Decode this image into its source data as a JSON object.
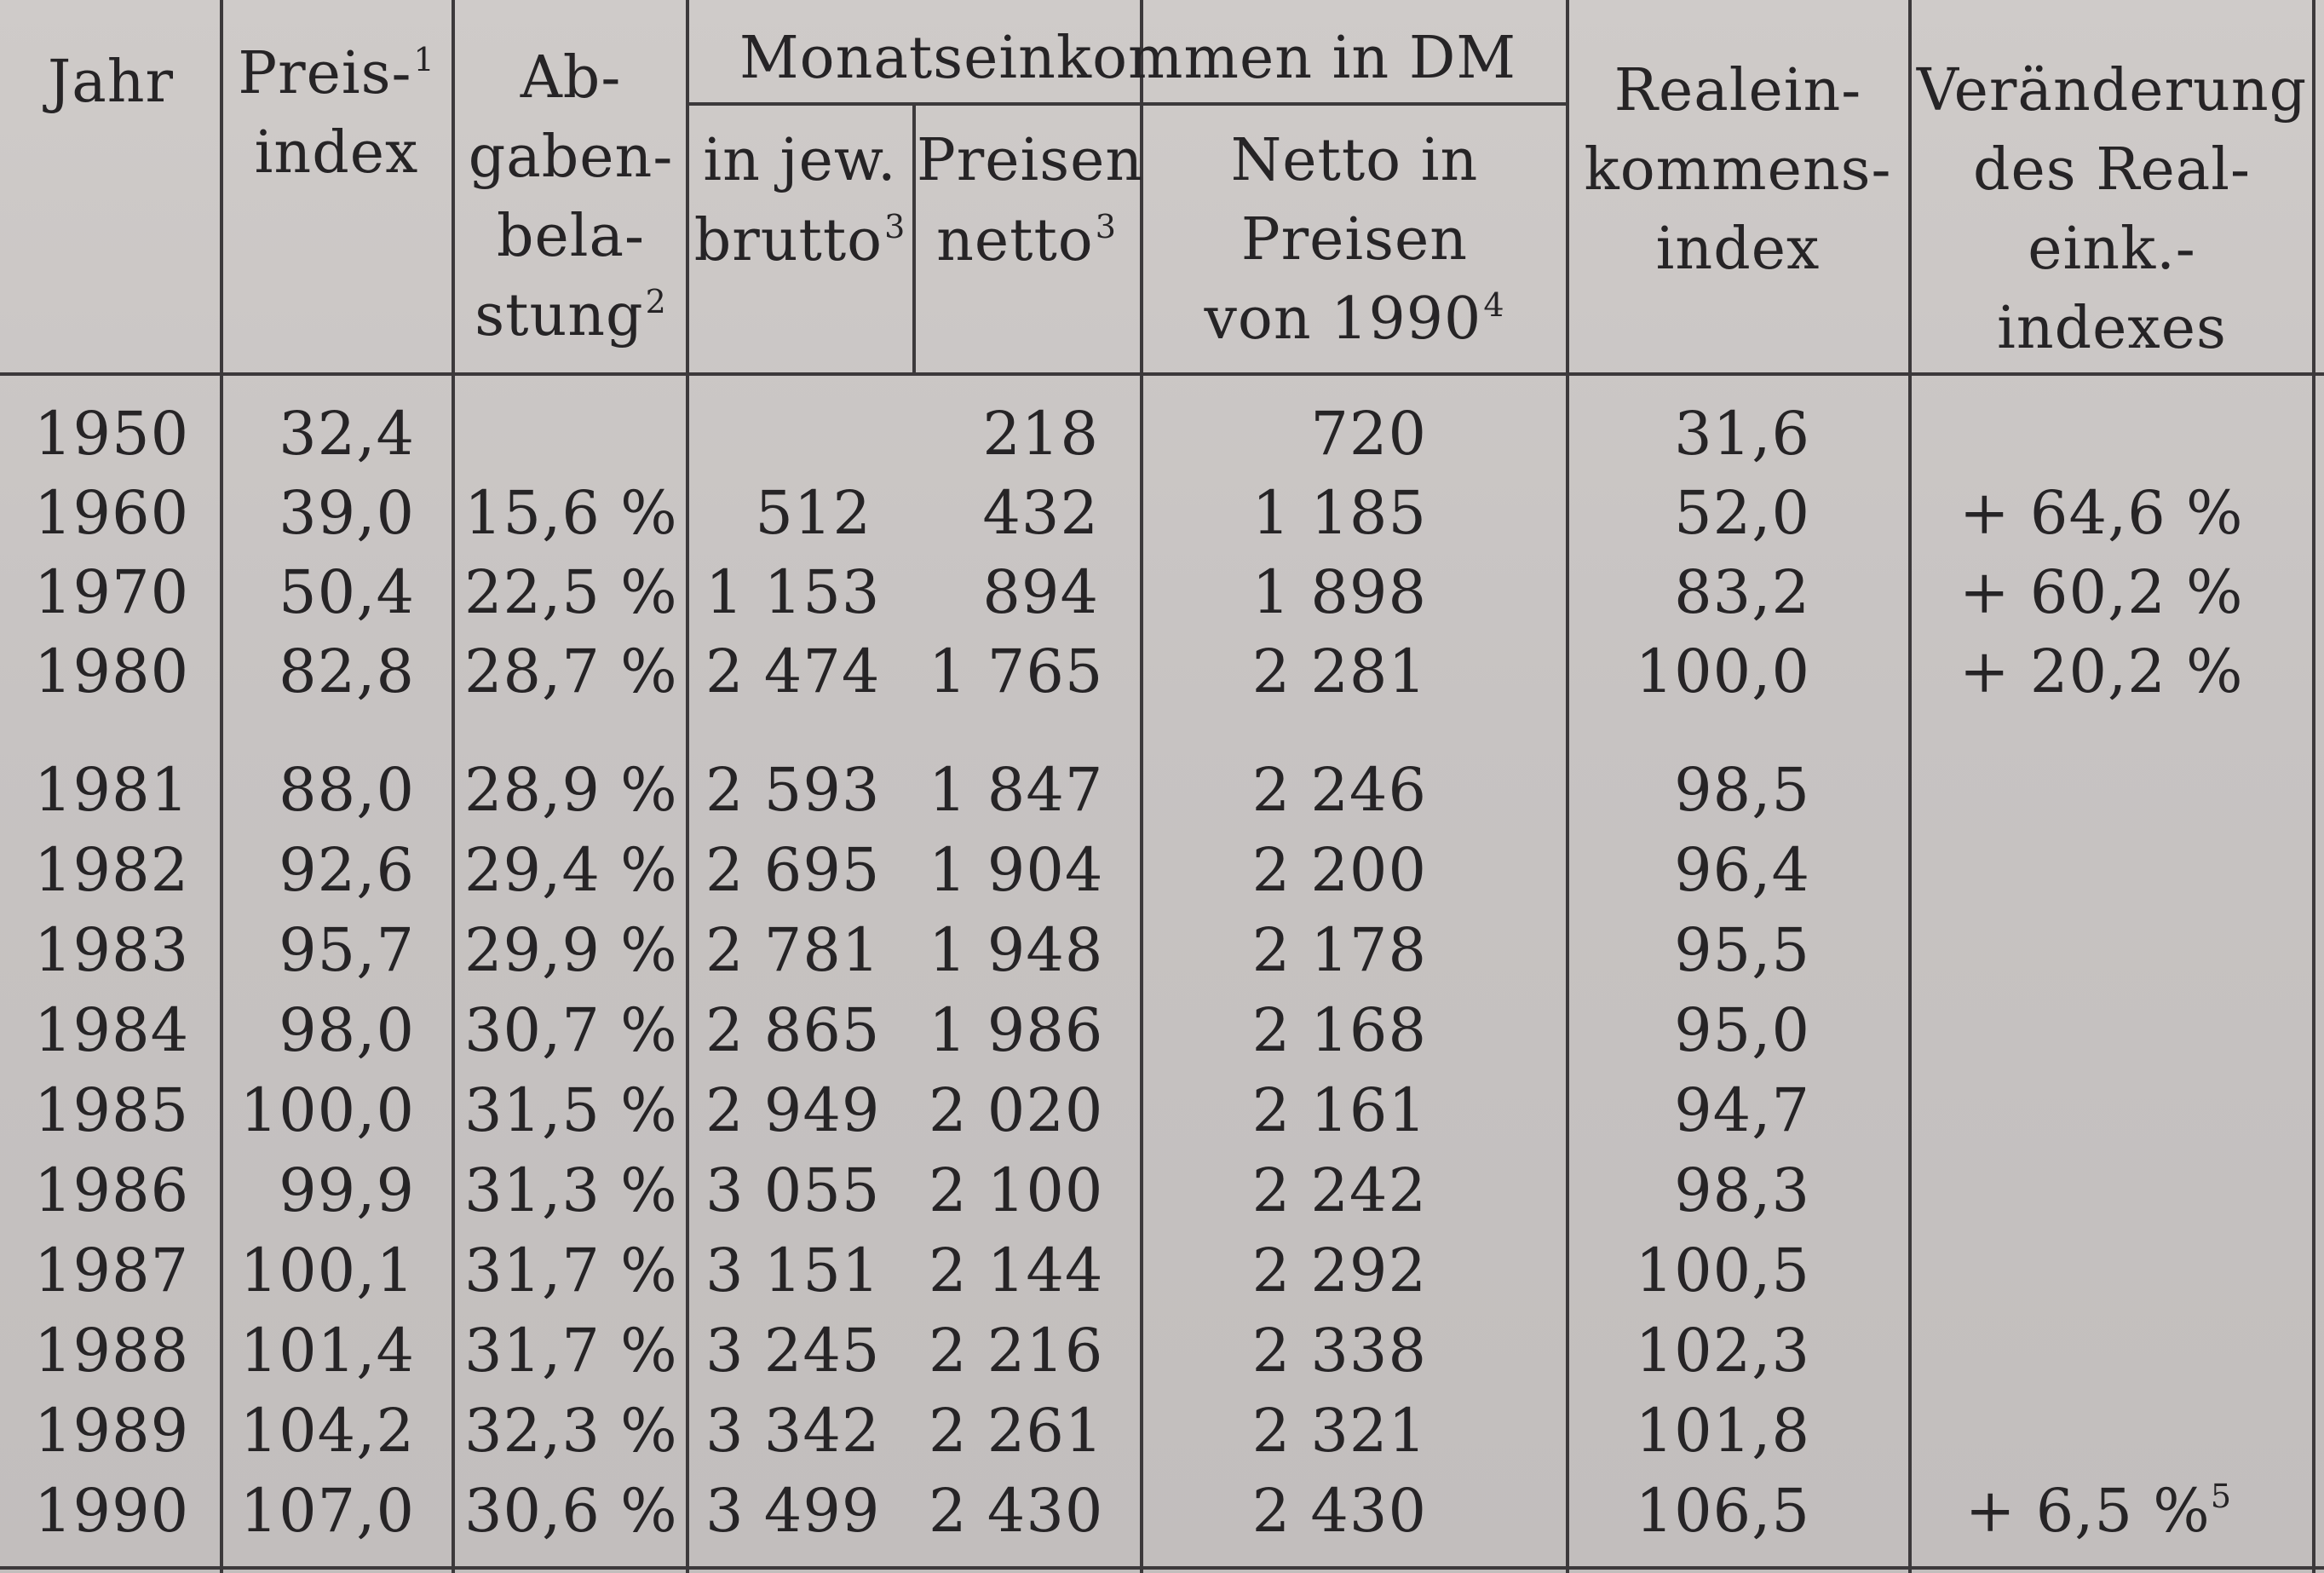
{
  "table": {
    "headers": {
      "year": "Jahr",
      "price_line1": "Preis-",
      "price_sup": "1",
      "price_line2": "index",
      "tax_line1": "Ab-",
      "tax_line2": "gaben-",
      "tax_line3": "bela-",
      "tax_line4": "stung",
      "tax_sup": "2",
      "group": "Monatseinkommen in DM",
      "current_prices_left": "in jew.",
      "current_prices_right": "Preisen",
      "brutto": "brutto",
      "brutto_sup": "3",
      "netto": "netto",
      "netto_sup": "3",
      "net90_line1": "Netto in",
      "net90_line2": "Preisen",
      "net90_line3": "von 1990",
      "net90_sup": "4",
      "real_line1": "Realein-",
      "real_line2": "kommens-",
      "real_line3": "index",
      "change_line1": "Veränderung",
      "change_line2": "des Real-",
      "change_line3": "eink.-",
      "change_line4": "indexes"
    },
    "rows": [
      {
        "year": "1950",
        "price_index": "32,4",
        "tax_burden": "",
        "brutto": "",
        "netto": "218",
        "netto_1990": "720",
        "real_index": "31,6",
        "change": "",
        "change_sup": ""
      },
      {
        "year": "1960",
        "price_index": "39,0",
        "tax_burden": "15,6 %",
        "brutto": "512",
        "netto": "432",
        "netto_1990": "1 185",
        "real_index": "52,0",
        "change": "+ 64,6 %",
        "change_sup": ""
      },
      {
        "year": "1970",
        "price_index": "50,4",
        "tax_burden": "22,5 %",
        "brutto": "1 153",
        "netto": "894",
        "netto_1990": "1 898",
        "real_index": "83,2",
        "change": "+ 60,2 %",
        "change_sup": ""
      },
      {
        "year": "1980",
        "price_index": "82,8",
        "tax_burden": "28,7 %",
        "brutto": "2 474",
        "netto": "1 765",
        "netto_1990": "2 281",
        "real_index": "100,0",
        "change": "+ 20,2 %",
        "change_sup": ""
      },
      {
        "year": "1981",
        "price_index": "88,0",
        "tax_burden": "28,9 %",
        "brutto": "2 593",
        "netto": "1 847",
        "netto_1990": "2 246",
        "real_index": "98,5",
        "change": "",
        "change_sup": ""
      },
      {
        "year": "1982",
        "price_index": "92,6",
        "tax_burden": "29,4 %",
        "brutto": "2 695",
        "netto": "1 904",
        "netto_1990": "2 200",
        "real_index": "96,4",
        "change": "",
        "change_sup": ""
      },
      {
        "year": "1983",
        "price_index": "95,7",
        "tax_burden": "29,9 %",
        "brutto": "2 781",
        "netto": "1 948",
        "netto_1990": "2 178",
        "real_index": "95,5",
        "change": "",
        "change_sup": ""
      },
      {
        "year": "1984",
        "price_index": "98,0",
        "tax_burden": "30,7 %",
        "brutto": "2 865",
        "netto": "1 986",
        "netto_1990": "2 168",
        "real_index": "95,0",
        "change": "",
        "change_sup": ""
      },
      {
        "year": "1985",
        "price_index": "100,0",
        "tax_burden": "31,5 %",
        "brutto": "2 949",
        "netto": "2 020",
        "netto_1990": "2 161",
        "real_index": "94,7",
        "change": "",
        "change_sup": ""
      },
      {
        "year": "1986",
        "price_index": "99,9",
        "tax_burden": "31,3 %",
        "brutto": "3 055",
        "netto": "2 100",
        "netto_1990": "2 242",
        "real_index": "98,3",
        "change": "",
        "change_sup": ""
      },
      {
        "year": "1987",
        "price_index": "100,1",
        "tax_burden": "31,7 %",
        "brutto": "3 151",
        "netto": "2 144",
        "netto_1990": "2 292",
        "real_index": "100,5",
        "change": "",
        "change_sup": ""
      },
      {
        "year": "1988",
        "price_index": "101,4",
        "tax_burden": "31,7 %",
        "brutto": "3 245",
        "netto": "2 216",
        "netto_1990": "2 338",
        "real_index": "102,3",
        "change": "",
        "change_sup": ""
      },
      {
        "year": "1989",
        "price_index": "104,2",
        "tax_burden": "32,3 %",
        "brutto": "3 342",
        "netto": "2 261",
        "netto_1990": "2 321",
        "real_index": "101,8",
        "change": "",
        "change_sup": ""
      },
      {
        "year": "1990",
        "price_index": "107,0",
        "tax_burden": "30,6 %",
        "brutto": "3 499",
        "netto": "2 430",
        "netto_1990": "2 430",
        "real_index": "106,5",
        "change": "+ 6,5 %",
        "change_sup": "5"
      }
    ]
  }
}
